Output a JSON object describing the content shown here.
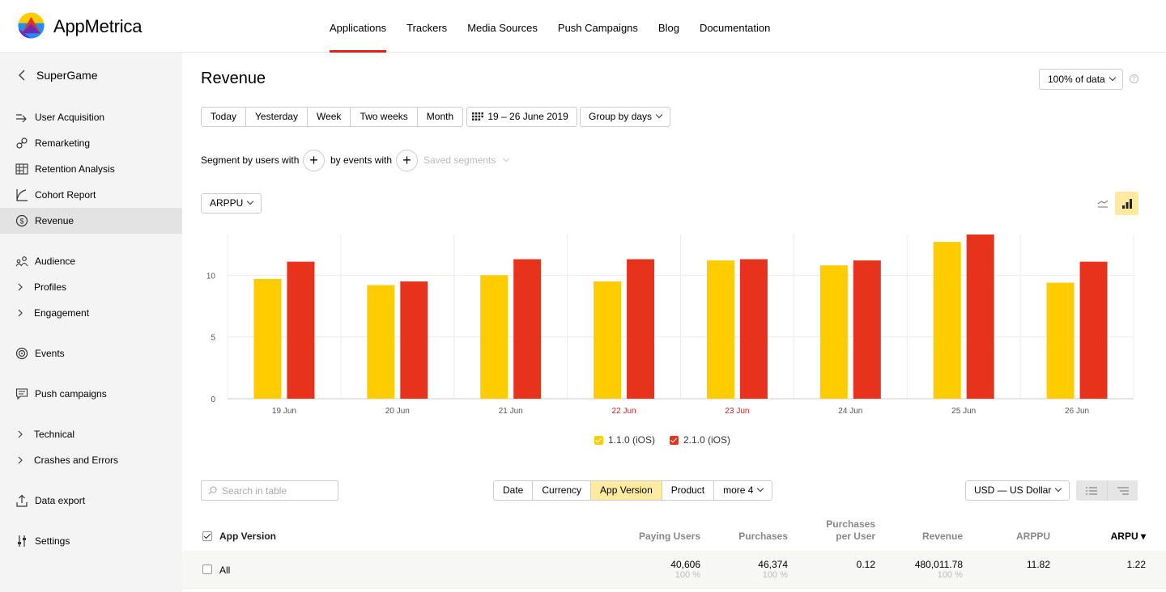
{
  "brand": {
    "name": "AppMetrica"
  },
  "topnav": [
    "Applications",
    "Trackers",
    "Media Sources",
    "Push Campaigns",
    "Blog",
    "Documentation"
  ],
  "sidebar": {
    "app_name": "SuperGame",
    "items": [
      {
        "label": "User Acquisition",
        "icon": "arrow-right-icon"
      },
      {
        "label": "Remarketing",
        "icon": "link-icon"
      },
      {
        "label": "Retention Analysis",
        "icon": "grid-table-icon"
      },
      {
        "label": "Cohort Report",
        "icon": "cohort-curve-icon"
      },
      {
        "label": "Revenue",
        "icon": "dollar-circle-icon"
      },
      {
        "label": "Audience",
        "icon": "people-icon"
      },
      {
        "label": "Profiles",
        "icon": "chevron-right-icon"
      },
      {
        "label": "Engagement",
        "icon": "chevron-right-icon"
      },
      {
        "label": "Events",
        "icon": "target-icon"
      },
      {
        "label": "Push campaigns",
        "icon": "chat-icon"
      },
      {
        "label": "Technical",
        "icon": "chevron-right-icon"
      },
      {
        "label": "Crashes and Errors",
        "icon": "chevron-right-icon"
      },
      {
        "label": "Data export",
        "icon": "upload-icon"
      },
      {
        "label": "Settings",
        "icon": "sliders-icon"
      }
    ]
  },
  "page": {
    "title": "Revenue",
    "data_sample": "100% of data",
    "help": "?"
  },
  "filters": {
    "periods": [
      "Today",
      "Yesterday",
      "Week",
      "Two weeks",
      "Month"
    ],
    "date_range": "19 – 26 June 2019",
    "grouping": "Group by days"
  },
  "segment": {
    "users_label": "Segment by users with",
    "events_label": "by events with",
    "saved": "Saved segments",
    "plus": "+"
  },
  "metric_select": "ARPPU",
  "colors": {
    "yellow": "#ffcc00",
    "red": "#e7321c",
    "accent": "#e4201b",
    "highlight": "#ffeba0"
  },
  "chart_data": {
    "type": "bar",
    "categories": [
      "19 Jun",
      "20 Jun",
      "21 Jun",
      "22 Jun",
      "23 Jun",
      "24 Jun",
      "25 Jun",
      "26 Jun"
    ],
    "weekend_categories": [
      "22 Jun",
      "23 Jun"
    ],
    "series": [
      {
        "name": "1.1.0 (iOS)",
        "color": "#ffcc00",
        "values": [
          9.7,
          9.2,
          10.0,
          9.5,
          11.2,
          10.8,
          12.7,
          9.4
        ]
      },
      {
        "name": "2.1.0 (iOS)",
        "color": "#e7321c",
        "values": [
          11.1,
          9.5,
          11.3,
          11.3,
          11.3,
          11.2,
          13.3,
          11.1
        ]
      }
    ],
    "ylim": [
      0,
      13.3
    ],
    "yticks": [
      0,
      5,
      10
    ],
    "grid": true,
    "legend": "bottom-center"
  },
  "table": {
    "search_placeholder": "Search in table",
    "dimensions": [
      "Date",
      "Currency",
      "App Version",
      "Product",
      "more 4"
    ],
    "selected_dimension": "App Version",
    "currency": "USD — US Dollar",
    "headers": {
      "first": "App Version",
      "paying_users": "Paying Users",
      "purchases": "Purchases",
      "purchases_per_user_1": "Purchases",
      "purchases_per_user_2": "per User",
      "revenue": "Revenue",
      "arppu": "ARPPU",
      "arpu": "ARPU ▾"
    },
    "rows": [
      {
        "label": "All",
        "paying_users": "40,606",
        "paying_users_pct": "100 %",
        "purchases": "46,374",
        "purchases_pct": "100 %",
        "purchases_per_user": "0.12",
        "revenue": "480,011.78",
        "revenue_pct": "100 %",
        "arppu": "11.82",
        "arpu": "1.22"
      }
    ]
  }
}
